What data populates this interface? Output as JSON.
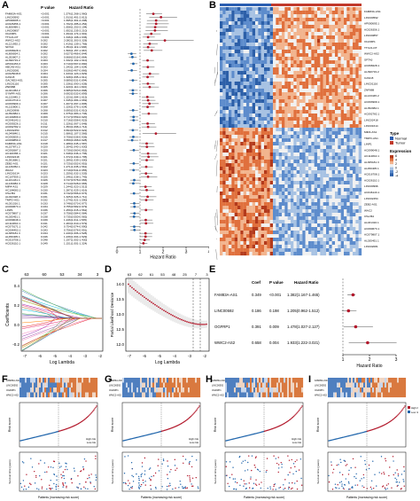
{
  "panel_labels": {
    "a": "A",
    "b": "B",
    "c": "C",
    "d": "D",
    "e": "E",
    "f": "F",
    "g": "G",
    "h": "H",
    "i": "I"
  },
  "panel_a": {
    "headers": [
      "",
      "P value",
      "Hazard Ratio"
    ],
    "axis_label": "Hazard Ratio",
    "ticks": [
      "0",
      "1",
      "2",
      "3",
      "4"
    ],
    "rows": [
      [
        "FAM83A-AS1",
        "<0.001",
        "1.576(1.268-1.960)",
        1.58,
        1.27,
        1.96
      ],
      [
        "LINC00592",
        "<0.001",
        "1.913(1.401-2.612)",
        1.91,
        1.4,
        2.61
      ],
      [
        "AP000695.1",
        "<0.001",
        "1.695(1.301-2.208)",
        1.7,
        1.3,
        2.21
      ],
      [
        "AC026356.1",
        "<0.001",
        "1.702(1.285-2.254)",
        1.7,
        1.29,
        2.25
      ],
      [
        "AL606489.1",
        "<0.001",
        "1.658(1.253-2.194)",
        1.66,
        1.25,
        2.19
      ],
      [
        "LINC00857",
        "<0.001",
        "1.652(1.235-2.210)",
        1.65,
        1.24,
        2.21
      ],
      [
        "OGFRP1",
        "<0.001",
        "1.494(1.174-1.901)",
        1.49,
        1.17,
        1.9
      ],
      [
        "TTC21-DT",
        "<0.001",
        "1.346(1.108-1.636)",
        1.35,
        1.11,
        1.64
      ],
      [
        "WWC2-AS2",
        "0.002",
        "2.082(1.303-3.328)",
        2.08,
        1.3,
        3.33
      ],
      [
        "AL121992.2",
        "0.002",
        "1.419(1.139-1.768)",
        1.42,
        1.14,
        1.77
      ],
      [
        "SFTA3",
        "0.002",
        "1.354(1.119-1.638)",
        1.35,
        1.12,
        1.64
      ],
      [
        "AC068228.1",
        "0.002",
        "1.509(1.157-1.967)",
        1.51,
        1.16,
        1.97
      ],
      [
        "AL606834.1",
        "0.002",
        "0.627(0.466-0.844)",
        0.63,
        0.47,
        0.84
      ],
      [
        "AL353807.2",
        "0.002",
        "0.668(0.516-0.864)",
        0.67,
        0.52,
        0.86
      ],
      [
        "AL390719.2",
        "0.003",
        "1.332(1.102-1.610)",
        1.33,
        1.1,
        1.61
      ],
      [
        "AP001453.3",
        "0.003",
        "0.710(0.567-0.890)",
        0.71,
        0.57,
        0.89
      ],
      [
        "ABCA9-AS1",
        "0.003",
        "1.343(1.104-1.634)",
        1.34,
        1.1,
        1.63
      ],
      [
        "LINC02081",
        "0.004",
        "0.636(0.467-0.866)",
        0.64,
        0.47,
        0.87
      ],
      [
        "AC025048.6",
        "0.004",
        "1.433(1.123-1.829)",
        1.43,
        1.12,
        1.83
      ],
      [
        "CASC8",
        "0.004",
        "1.328(1.095-1.611)",
        1.33,
        1.1,
        1.61
      ],
      [
        "GACND3-AS1",
        "0.005",
        "0.689(0.531-0.894)",
        0.69,
        0.53,
        0.89
      ],
      [
        "LINC01116",
        "0.005",
        "1.336(1.090-1.638)",
        1.34,
        1.09,
        1.64
      ],
      [
        "ZNF888",
        "0.005",
        "1.420(1.110-1.816)",
        1.42,
        1.11,
        1.82
      ],
      [
        "AL021453.2",
        "0.006",
        "0.685(0.523-0.898)",
        0.69,
        0.52,
        0.9
      ],
      [
        "SYNPR-AS1",
        "0.006",
        "0.692(0.532-0.899)",
        0.69,
        0.53,
        0.9
      ],
      [
        "AL133445.2",
        "0.006",
        "1.323(1.084-1.615)",
        1.32,
        1.08,
        1.62
      ],
      [
        "AC010719.1",
        "0.007",
        "1.345(1.084-1.669)",
        1.35,
        1.08,
        1.67
      ],
      [
        "AC093909.1",
        "0.007",
        "1.407(1.097-1.805)",
        1.41,
        1.1,
        1.81
      ],
      [
        "AL132800.1",
        "0.008",
        "1.326(1.076-1.634)",
        1.33,
        1.08,
        1.63
      ],
      [
        "LINC00996",
        "0.008",
        "0.695(0.531-0.910)",
        0.7,
        0.53,
        0.91
      ],
      [
        "AL352984.1",
        "0.009",
        "1.375(1.083-1.746)",
        1.38,
        1.08,
        1.75
      ],
      [
        "AC104809.2",
        "0.009",
        "0.717(0.559-0.920)",
        0.72,
        0.56,
        0.92
      ],
      [
        "AC046143.1",
        "0.010",
        "0.716(0.556-0.923)",
        0.72,
        0.56,
        0.92
      ],
      [
        "AC009226.1",
        "0.011",
        "1.326(1.067-1.648)",
        1.33,
        1.07,
        1.65
      ],
      [
        "AC092782.1",
        "0.012",
        "1.353(1.068-1.714)",
        1.35,
        1.07,
        1.71
      ],
      [
        "LINC02454",
        "0.012",
        "0.694(0.522-0.922)",
        0.69,
        0.52,
        0.92
      ],
      [
        "AL049840.1",
        "0.015",
        "1.686(1.107-2.566)",
        1.69,
        1.11,
        2.57
      ],
      [
        "AC090559.1",
        "0.015",
        "0.708(0.536-0.936)",
        0.71,
        0.54,
        0.94
      ],
      [
        "AC099850.4",
        "0.017",
        "0.659(0.468-0.928)",
        0.66,
        0.47,
        0.93
      ],
      [
        "FAM83A-AS1",
        "0.018",
        "1.288(1.045-1.587)",
        1.29,
        1.05,
        1.59
      ],
      [
        "AL157871.2",
        "0.020",
        "1.304(1.043-1.630)",
        1.3,
        1.04,
        1.63
      ],
      [
        "AC092687.1",
        "0.020",
        "0.730(0.560-0.952)",
        0.73,
        0.56,
        0.95
      ],
      [
        "AC116366.1",
        "0.021",
        "1.348(1.046-1.736)",
        1.35,
        1.05,
        1.74
      ],
      [
        "LINC02418",
        "0.021",
        "1.372(1.049-1.795)",
        1.37,
        1.05,
        1.8
      ],
      [
        "AL591686.1",
        "0.021",
        "1.289(1.039-1.600)",
        1.29,
        1.04,
        1.6
      ],
      [
        "ZEB2-AS1",
        "0.021",
        "0.725(0.552-0.953)",
        0.73,
        0.55,
        0.95
      ],
      [
        "AL139352.1",
        "0.022",
        "1.271(1.035-1.561)",
        1.27,
        1.04,
        1.56
      ],
      [
        "WAC2",
        "0.023",
        "0.719(0.541-0.955)",
        0.72,
        0.54,
        0.96
      ],
      [
        "LINC01614",
        "0.023",
        "1.259(1.032-1.535)",
        1.26,
        1.03,
        1.54
      ],
      [
        "AC107959.1",
        "0.025",
        "1.346(1.038-1.745)",
        1.35,
        1.04,
        1.75
      ],
      [
        "AL161431.1",
        "0.026",
        "0.747(0.578-0.966)",
        0.75,
        0.58,
        0.97
      ],
      [
        "AL136084.3",
        "0.028",
        "0.714(0.528-0.965)",
        0.71,
        0.53,
        0.97
      ],
      [
        "MIR4-AS1",
        "0.029",
        "1.244(1.023-1.513)",
        1.24,
        1.02,
        1.51
      ],
      [
        "AC104083.1",
        "0.030",
        "1.287(1.025-1.616)",
        1.29,
        1.03,
        1.62
      ],
      [
        "C5orf64",
        "0.031",
        "0.742(0.566-0.973)",
        0.74,
        0.57,
        0.97
      ],
      [
        "AL022328.4",
        "0.031",
        "1.325(1.026-1.711)",
        1.33,
        1.03,
        1.71
      ],
      [
        "TMPO-AS1",
        "0.032",
        "1.274(1.021-1.590)",
        1.27,
        1.02,
        1.59
      ],
      [
        "AL031316.1",
        "0.033",
        "0.748(0.573-0.977)",
        0.75,
        0.57,
        0.98
      ],
      [
        "AC090673.1",
        "0.034",
        "0.755(0.582-0.979)",
        0.76,
        0.58,
        0.98
      ],
      [
        "LINP1",
        "0.036",
        "1.259(1.015-1.562)",
        1.26,
        1.02,
        1.56
      ],
      [
        "AC079807.1",
        "0.037",
        "0.758(0.584-0.984)",
        0.76,
        0.58,
        0.98
      ],
      [
        "AL035451.1",
        "0.038",
        "0.735(0.550-0.983)",
        0.74,
        0.55,
        0.98
      ],
      [
        "AC099048.1",
        "0.039",
        "1.246(1.011-1.535)",
        1.25,
        1.01,
        1.54
      ],
      [
        "AC114810.1",
        "0.041",
        "1.263(1.010-1.579)",
        1.26,
        1.01,
        1.58
      ],
      [
        "AC079171.1",
        "0.042",
        "0.754(0.574-0.990)",
        0.75,
        0.57,
        0.99
      ],
      [
        "AC004453.1",
        "0.043",
        "0.756(0.576-0.991)",
        0.76,
        0.58,
        0.99
      ],
      [
        "AL365181.3",
        "0.044",
        "1.240(1.006-1.528)",
        1.24,
        1.01,
        1.53
      ],
      [
        "AL450405.1",
        "0.046",
        "1.239(1.004-1.529)",
        1.24,
        1.0,
        1.53
      ],
      [
        "AC016708.1",
        "0.048",
        "1.197(1.002-1.430)",
        1.2,
        1.0,
        1.43
      ],
      [
        "AC026110.1",
        "0.049",
        "1.151(1.001-1.324)",
        1.15,
        1.0,
        1.32
      ]
    ]
  },
  "panel_b": {
    "legend": {
      "type_title": "Type",
      "type_items": [
        "Normal",
        "Tumor"
      ],
      "expr_title": "Expression",
      "expr_ticks": [
        "6",
        "4",
        "2",
        "0",
        "-2",
        "-4"
      ]
    },
    "right_labels": [
      "FAM83A-AS1",
      "LINC00592",
      "AP000695.1",
      "AC026356.1",
      "LINC00857",
      "OGFRP1",
      "TTC21-DT",
      "WWC2-AS2",
      "SFTA3",
      "AC068228.1",
      "AL390719.2",
      "CASC8",
      "LINC01116",
      "ZNF888",
      "AL133445.2",
      "AC093909.1",
      "AL352984.1",
      "AC092782.1",
      "LINC02418",
      "LINC01614",
      "MIR4-AS1",
      "TMPO-AS1",
      "LINP1",
      "AC099048.1",
      "AC114810.1",
      "AL365181.3",
      "AL450405.1",
      "AC016708.1",
      "AC026110.1",
      "LINC00996",
      "AC046143.1",
      "LINC02454",
      "ZEB2-AS1",
      "WAC2",
      "C5orf64",
      "AL031316.1",
      "AC090673.1",
      "AC079807.1",
      "AL035451.1",
      "LINC02081"
    ]
  },
  "panel_c": {
    "top_ticks": [
      "63",
      "60",
      "53",
      "34",
      "3"
    ],
    "x_ticks": [
      "-7",
      "-6",
      "-5",
      "-4",
      "-3",
      "-2"
    ],
    "y_ticks": [
      "0.4",
      "0.2",
      "0.0",
      "-0.2"
    ],
    "xlabel": "Log Lambda",
    "ylabel": "Coefficients"
  },
  "panel_d": {
    "top_ticks": [
      "63",
      "62",
      "61",
      "53",
      "48",
      "25",
      "7",
      "3"
    ],
    "x_ticks": [
      "-7",
      "-6",
      "-5",
      "-4",
      "-3",
      "-2"
    ],
    "y_ticks": [
      "14.0",
      "13.5",
      "13.0",
      "12.5",
      "12.0"
    ],
    "xlabel": "Log Lambda",
    "ylabel": "Partial Likelihood Deviance"
  },
  "panel_e": {
    "headers": [
      "Coef",
      "P value",
      "Hazard Ratio"
    ],
    "rows": [
      [
        "FAM83A-AS1",
        "0.349",
        "<0.001",
        "1.382(1.167-1.465)",
        1.38,
        1.17,
        1.47
      ],
      [
        "LINC00592",
        "0.186",
        "0.198",
        "1.205(0.962-1.512)",
        1.21,
        0.96,
        1.51
      ],
      [
        "OGFRP1",
        "0.391",
        "0.009",
        "1.478(1.027-2.127)",
        1.48,
        1.03,
        2.13
      ],
      [
        "WWC2-AS2",
        "0.658",
        "0.004",
        "1.933(1.222-3.021)",
        1.93,
        1.22,
        3.02
      ]
    ],
    "axis_label": "Hazard Ratio",
    "ticks": [
      "1",
      "2",
      "3"
    ]
  },
  "risk_panels": [
    {
      "genes": [
        "FAM83A-AS1",
        "LINC00592",
        "OGFRP1",
        "WWC2-AS2"
      ],
      "ylabel1": "Risk score",
      "ylabel2": "Survival time (years)",
      "legend": [
        "High risk",
        "Low risk"
      ],
      "xlabel": "Patients (increasing risk score)"
    },
    {
      "genes": [
        "FAM83A-AS1",
        "LINC00592",
        "OGFRP1",
        "WWC2-AS2"
      ],
      "ylabel1": "Risk score",
      "ylabel2": "Survival time (years)",
      "legend": [
        "High risk",
        "Low risk"
      ],
      "xlabel": "Patients (increasing risk score)"
    },
    {
      "genes": [
        "FAM83A-AS1",
        "LINC00592",
        "OGFRP1",
        "WWC2-AS2"
      ],
      "ylabel1": "Risk score",
      "ylabel2": "Survival time (years)",
      "legend": [
        "High risk",
        "Low risk"
      ],
      "xlabel": "Patients (increasing risk score)"
    },
    {
      "genes": [
        "FAM83A-AS1",
        "LINC00592",
        "OGFRP1",
        "WWC2-AS2"
      ],
      "ylabel1": "Risk score",
      "ylabel2": "Survival time (years)",
      "legend": [
        "High risk",
        "Low risk"
      ],
      "xlabel": "Patients (increasing risk score)"
    }
  ],
  "colors": {
    "red": "#b2182b",
    "blue": "#2166ac",
    "orange": "#e08a3c",
    "lightblue": "#7fa6d4",
    "type_normal": "#2a5db0",
    "type_tumor": "#c0392b"
  }
}
